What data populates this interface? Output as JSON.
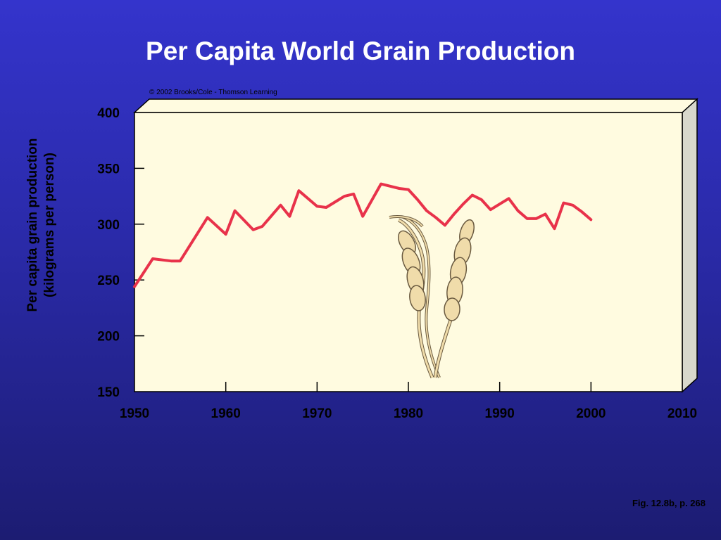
{
  "slide": {
    "title": "Per Capita World Grain Production",
    "copyright": "© 2002 Brooks/Cole - Thomson Learning",
    "caption": "Fig. 12.8b, p. 268"
  },
  "colors": {
    "background": "#2f2fb8",
    "plot_area": "#fffbe0",
    "line": "#e8324a",
    "grain": "#f0dcaa"
  },
  "chart_data": {
    "type": "line",
    "title": "Per Capita World Grain Production",
    "xlabel": "",
    "ylabel": "Per capita grain production (kilograms per person)",
    "ylabel_lines": [
      "Per capita grain production",
      "(kilograms per person)"
    ],
    "xlim": [
      1950,
      2010
    ],
    "ylim": [
      150,
      400
    ],
    "xticks": [
      1950,
      1960,
      1970,
      1980,
      1990,
      2000,
      2010
    ],
    "yticks": [
      150,
      200,
      250,
      300,
      350,
      400
    ],
    "grid": false,
    "series": [
      {
        "x": [
          1950,
          1952,
          1954,
          1955,
          1958,
          1960,
          1961,
          1963,
          1964,
          1966,
          1967,
          1968,
          1970,
          1971,
          1972,
          1973,
          1974,
          1975,
          1977,
          1978,
          1979,
          1980,
          1981,
          1982,
          1983,
          1984,
          1985,
          1986,
          1987,
          1988,
          1989,
          1990,
          1991,
          1992,
          1993,
          1994,
          1995,
          1996,
          1997,
          1998,
          1999,
          2000
        ],
        "y": [
          244,
          269,
          267,
          267,
          306,
          291,
          312,
          295,
          298,
          317,
          307,
          330,
          316,
          315,
          320,
          325,
          327,
          307,
          336,
          334,
          332,
          331,
          322,
          312,
          306,
          299,
          309,
          318,
          326,
          322,
          313,
          318,
          323,
          312,
          305,
          305,
          309,
          296,
          319,
          317,
          311,
          304
        ]
      }
    ]
  }
}
